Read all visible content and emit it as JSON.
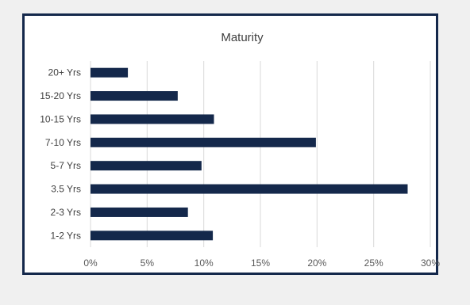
{
  "chart_data": {
    "type": "bar",
    "orientation": "horizontal",
    "title": "Maturity",
    "categories": [
      "1-2 Yrs",
      "2-3 Yrs",
      "3.5 Yrs",
      "5-7 Yrs",
      "7-10 Yrs",
      "10-15 Yrs",
      "15-20 Yrs",
      "20+ Yrs"
    ],
    "values": [
      10.8,
      8.6,
      28.0,
      9.8,
      19.9,
      10.9,
      7.7,
      3.3
    ],
    "xlim": [
      0,
      30
    ],
    "xticks": [
      "0%",
      "5%",
      "10%",
      "15%",
      "20%",
      "25%",
      "30%"
    ],
    "grid": true,
    "bar_color": "#14284b",
    "frame_color": "#14284b"
  }
}
